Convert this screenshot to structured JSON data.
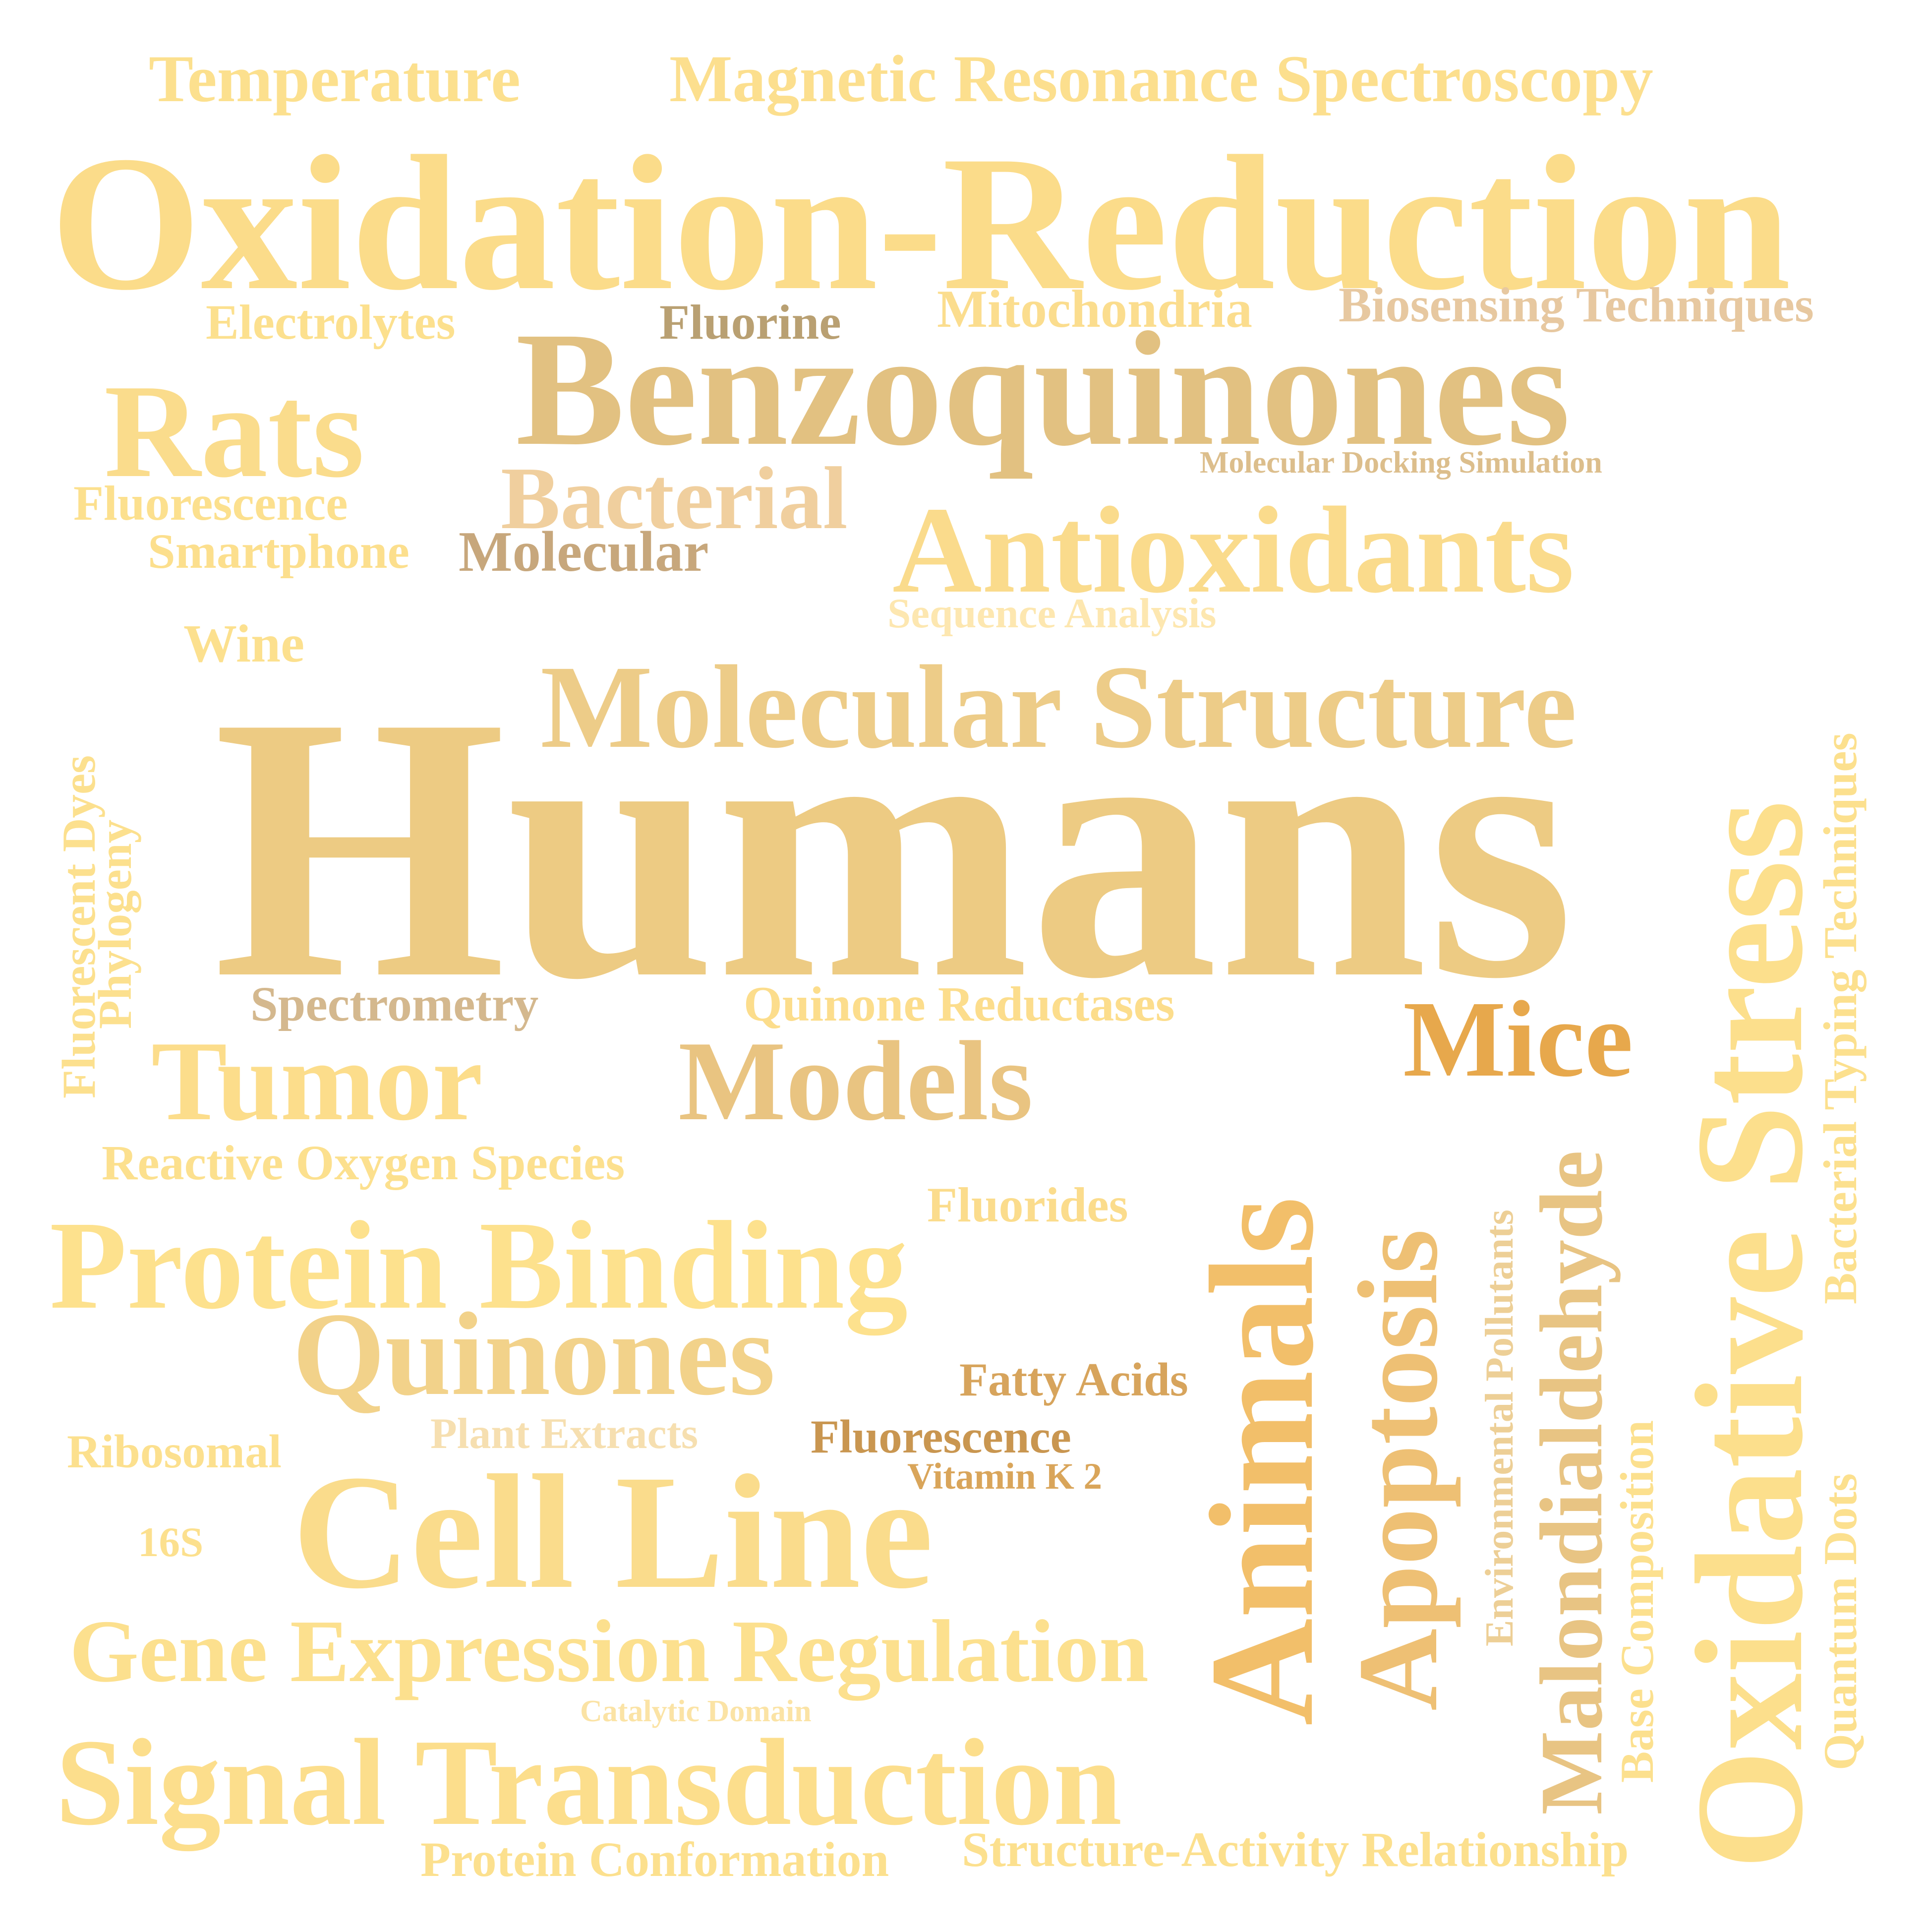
{
  "words": {
    "temperature": "Temperature",
    "magnetic_resonance_spectroscopy": "Magnetic Resonance Spectroscopy",
    "oxidation_reduction": "Oxidation-Reduction",
    "electrolytes": "Electrolytes",
    "fluorine": "Fluorine",
    "mitochondria": "Mitochondria",
    "biosensing_techniques": "Biosensing Techniques",
    "benzoquinones": "Benzoquinones",
    "rats": "Rats",
    "molecular_docking_simulation": "Molecular Docking Simulation",
    "bacterial": "Bacterial",
    "fluorescence_1": "Fluorescence",
    "smartphone": "Smartphone",
    "molecular": "Molecular",
    "antioxidants": "Antioxidants",
    "sequence_analysis": "Sequence Analysis",
    "wine": "Wine",
    "molecular_structure": "Molecular Structure",
    "humans": "Humans",
    "fluorescent_dyes": "Fluorescent Dyes",
    "phylogeny": "Phylogeny",
    "spectrometry": "Spectrometry",
    "quinone_reductases": "Quinone Reductases",
    "mice": "Mice",
    "tumor": "Tumor",
    "models": "Models",
    "reactive_oxygen_species": "Reactive Oxygen Species",
    "fluorides": "Fluorides",
    "protein_binding": "Protein Binding",
    "quinones": "Quinones",
    "fatty_acids": "Fatty Acids",
    "ribosomal": "Ribosomal",
    "plant_extracts": "Plant Extracts",
    "fluorescence_2": "Fluorescence",
    "vitamin_k2": "Vitamin K 2",
    "cell_line": "Cell Line",
    "sixteen_s": "16S",
    "gene_expression_regulation": "Gene Expression Regulation",
    "catalytic_domain": "Catalytic Domain",
    "signal_transduction": "Signal Transduction",
    "protein_conformation": "Protein Conformation",
    "structure_activity_relationship": "Structure-Activity Relationship",
    "animals": "Animals",
    "apoptosis": "Apoptosis",
    "environmental_pollutants": "Environmental Pollutants",
    "malondialdehyde": "Malondialdehyde",
    "base_composition": "Base Composition",
    "oxidative_stress": "Oxidative Stress",
    "quantum_dots": "Quantum Dots",
    "bacterial_typing_techniques": "Bacterial Typing Techniques"
  },
  "colors": {
    "pale_yellow": "#FFE28C",
    "light_gold": "#F9DA89",
    "tan": "#ECC98A",
    "sand": "#F1CF85",
    "brown_tan": "#C7A878",
    "orange_gold": "#E8A84A",
    "amber": "#F2BF6A",
    "caramel": "#D9A85F",
    "khaki": "#D9BE8E",
    "soft_yellow": "#FDE08F"
  }
}
